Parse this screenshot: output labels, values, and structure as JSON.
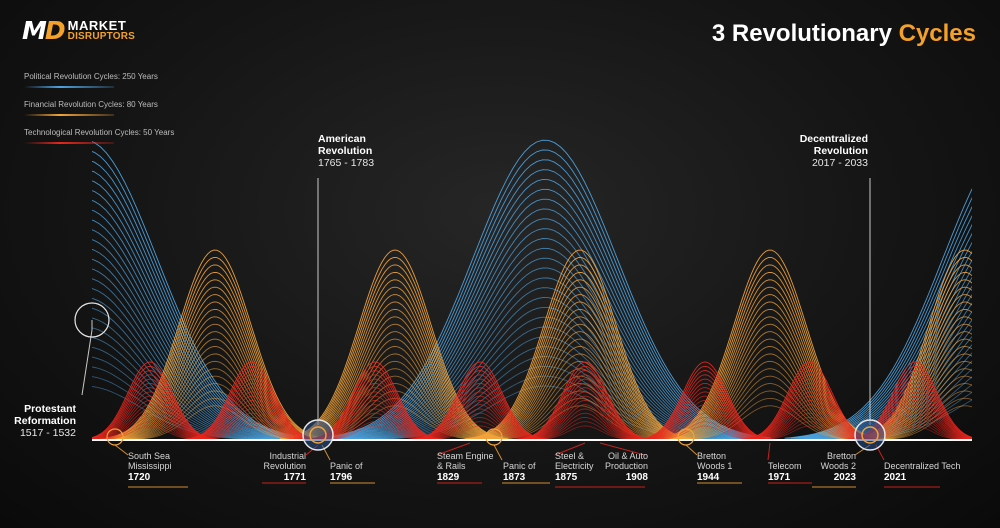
{
  "brand": {
    "mark_left": "M",
    "mark_right": "D",
    "line1": "MARKET",
    "line2": "DISRUPTORS"
  },
  "title": {
    "main": "3 Revolutionary",
    "accent": "Cycles"
  },
  "legend": [
    {
      "label": "Political Revolution Cycles: 250 Years",
      "color": "#4da3e0"
    },
    {
      "label": "Financial Revolution Cycles: 80 Years",
      "color": "#f2a33a"
    },
    {
      "label": "Technological Revolution Cycles: 50 Years",
      "color": "#e8261c"
    }
  ],
  "revolutions": {
    "protestant": {
      "name": "Protestant Reformation",
      "years": "1517 - 1532"
    },
    "american": {
      "name": "American Revolution",
      "years": "1765 - 1783"
    },
    "decentralized": {
      "name": "Decentralized Revolution",
      "years": "2017 - 2033"
    }
  },
  "events": [
    {
      "label": "South Sea Mississippi",
      "year": "1720"
    },
    {
      "label": "Industrial Revolution",
      "year": "1771"
    },
    {
      "label": "Panic of",
      "year": "1796"
    },
    {
      "label": "Steam Engine & Rails",
      "year": "1829"
    },
    {
      "label": "Panic of",
      "year": "1873"
    },
    {
      "label": "Steel & Electricity",
      "year": "1875"
    },
    {
      "label": "Oil & Auto Production",
      "year": "1908"
    },
    {
      "label": "Bretton Woods 1",
      "year": "1944"
    },
    {
      "label": "Telecom",
      "year": "1971"
    },
    {
      "label": "Bretton Woods 2",
      "year": "2023"
    },
    {
      "label": "Decentralized Tech",
      "year": "2021"
    }
  ],
  "colors": {
    "political": "#4da3e0",
    "financial": "#f2a33a",
    "technological": "#e8261c",
    "accent": "#f4a12a"
  }
}
